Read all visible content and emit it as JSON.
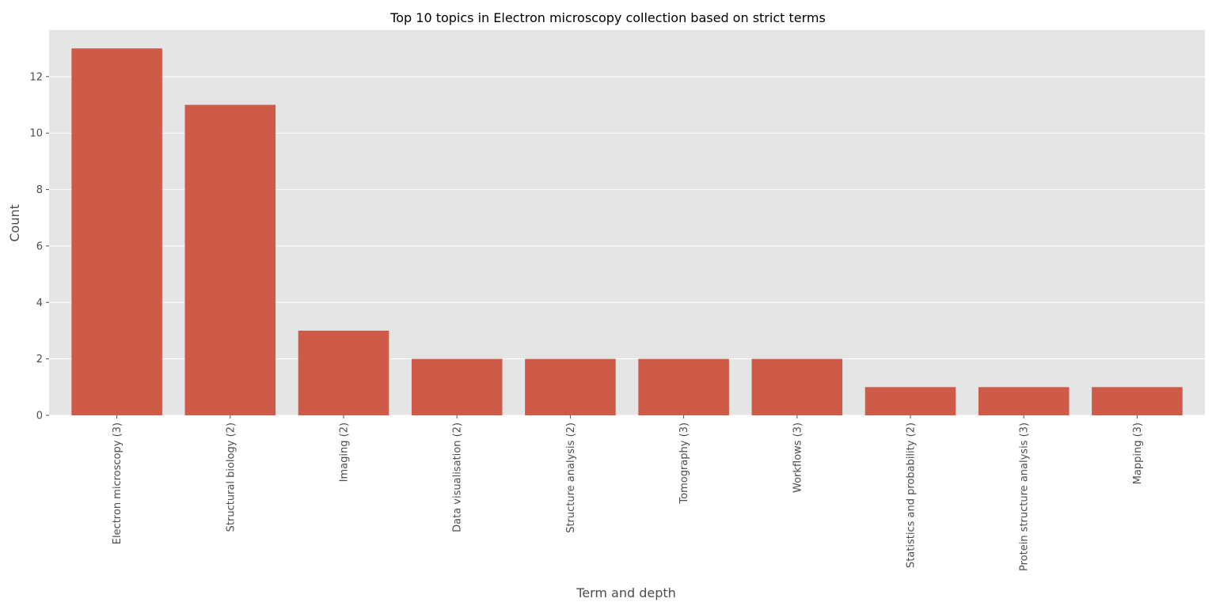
{
  "chart_data": {
    "type": "bar",
    "title": "Top 10 topics in Electron microscopy collection based on strict terms",
    "xlabel": "Term and depth",
    "ylabel": "Count",
    "categories": [
      "Electron microscopy (3)",
      "Structural biology (2)",
      "Imaging (2)",
      "Data visualisation (2)",
      "Structure analysis (2)",
      "Tomography (3)",
      "Workflows (3)",
      "Statistics and probability (2)",
      "Protein structure analysis (3)",
      "Mapping (3)"
    ],
    "values": [
      13,
      11,
      3,
      2,
      2,
      2,
      2,
      1,
      1,
      1
    ],
    "ylim": [
      0,
      13.65
    ],
    "yticks": [
      0,
      2,
      4,
      6,
      8,
      10,
      12
    ],
    "grid": true,
    "style": "ggplot",
    "colors": {
      "bar": "#cd5b48",
      "plot_background": "#e5e5e5",
      "grid": "#ffffff",
      "tick_text": "#4d4d4d",
      "title_text": "#000000"
    }
  }
}
